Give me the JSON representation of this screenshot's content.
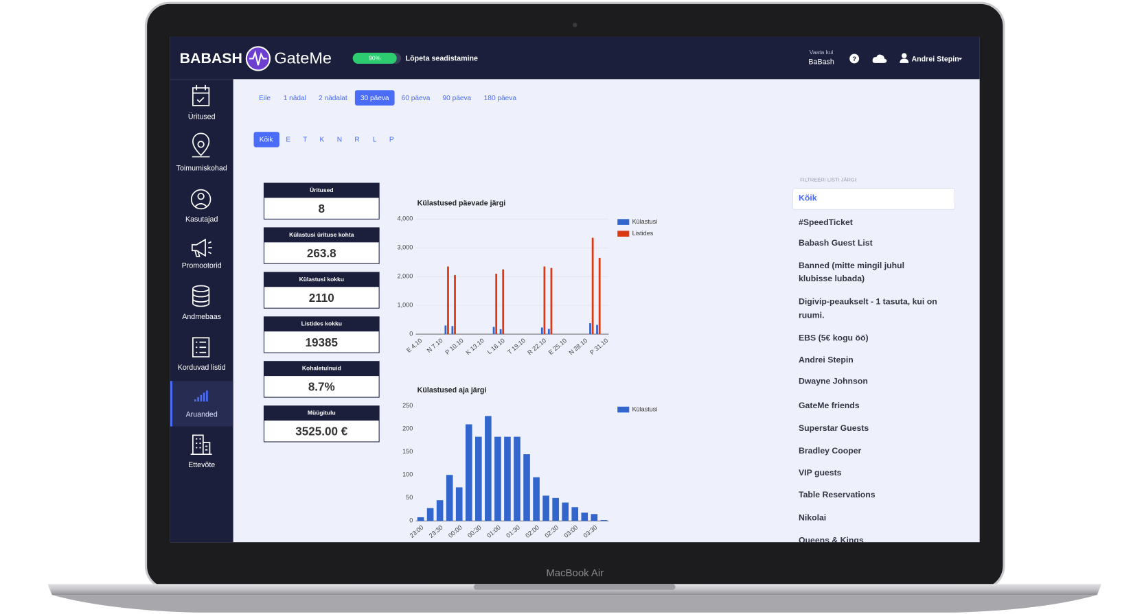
{
  "header": {
    "brand": "BABASH",
    "product": "GateMe",
    "progress": "90%",
    "setup": "Lõpeta seadistamine",
    "view_as_label": "Vaata kui",
    "view_as": "BaBash",
    "help": "?",
    "user": "Andrei Stepin"
  },
  "sidebar": [
    "Üritused",
    "Toimumiskohad",
    "Kasutajad",
    "Promootorid",
    "Andmebaas",
    "Korduvad listid",
    "Aruanded",
    "Ettevõte"
  ],
  "periods": [
    "Eile",
    "1 nädal",
    "2 nädalat",
    "30 päeva",
    "60 päeva",
    "90 päeva",
    "180 päeva"
  ],
  "days": [
    "Kõik",
    "E",
    "T",
    "K",
    "N",
    "R",
    "L",
    "P"
  ],
  "stats": [
    {
      "label": "Üritused",
      "value": "8"
    },
    {
      "label": "Külastusi ürituse kohta",
      "value": "263.8"
    },
    {
      "label": "Külastusi kokku",
      "value": "2110"
    },
    {
      "label": "Listides kokku",
      "value": "19385"
    },
    {
      "label": "Kohaletulnuid",
      "value": "8.7%"
    },
    {
      "label": "Müügitulu",
      "value": "3525.00 €"
    }
  ],
  "filter_list": {
    "heading": "FILTREERI LISTI JÄRGI:",
    "selected": "Kõik",
    "items": [
      "#SpeedTicket",
      "Babash Guest List",
      [
        "Banned (mitte mingil juhul",
        "klubisse lubada)"
      ],
      [
        "Digivip-peaukselt - 1 tasuta, kui on",
        "ruumi."
      ],
      "EBS (5€ kogu öö)",
      "Andrei Stepin",
      "Dwayne Johnson",
      "GateMe friends",
      "Superstar Guests",
      "Bradley Cooper",
      "VIP guests",
      "Table Reservations",
      "Nikolai",
      "Queens & Kings"
    ]
  },
  "device_label": "MacBook Air",
  "chart_data": [
    {
      "type": "bar",
      "title": "Külastused päevade järgi",
      "categories": [
        "E 4.10",
        null,
        null,
        "N 7.10",
        null,
        null,
        "P 10.10",
        null,
        null,
        "K 13.10",
        null,
        null,
        "L 16.10",
        null,
        null,
        "T 19.10",
        null,
        null,
        "R 22.10",
        null,
        null,
        "E 25.10",
        null,
        null,
        "N 28.10",
        null,
        null,
        "P 31.10"
      ],
      "series": [
        {
          "name": "Külastusi",
          "color": "#3366cc",
          "values": [
            0,
            0,
            0,
            0,
            300,
            280,
            0,
            0,
            0,
            0,
            0,
            250,
            170,
            0,
            0,
            0,
            0,
            0,
            230,
            180,
            0,
            0,
            0,
            0,
            0,
            380,
            320,
            0
          ]
        },
        {
          "name": "Listides",
          "color": "#dc3912",
          "values": [
            0,
            0,
            0,
            0,
            2350,
            2050,
            0,
            0,
            0,
            0,
            0,
            2100,
            2250,
            0,
            0,
            0,
            0,
            0,
            2350,
            2300,
            0,
            0,
            0,
            0,
            0,
            3350,
            2650,
            0
          ]
        }
      ],
      "ylim": [
        0,
        4000
      ],
      "yticks": [
        0,
        {
          "value": 1000,
          "label": "1,000"
        },
        {
          "value": 2000,
          "label": "2,000"
        },
        {
          "value": 3000,
          "label": "3,000"
        },
        {
          "value": 4000,
          "label": "4,000"
        }
      ],
      "grid": true
    },
    {
      "type": "bar",
      "title": "Külastused aja järgi",
      "categories": [
        "23:00",
        null,
        "23:30",
        null,
        "00:00",
        null,
        "00:30",
        null,
        "01:00",
        null,
        "01:30",
        null,
        "02:00",
        null,
        "02:30",
        null,
        "03:00",
        null,
        "03:30",
        null
      ],
      "series": [
        {
          "name": "Külastusi",
          "color": "#3366cc",
          "values": [
            8,
            28,
            45,
            100,
            73,
            210,
            183,
            228,
            183,
            183,
            183,
            145,
            95,
            55,
            50,
            40,
            30,
            18,
            15,
            2
          ]
        }
      ],
      "ylim": [
        0,
        250
      ],
      "yticks": [
        0,
        50,
        100,
        150,
        200,
        250
      ],
      "grid": false
    }
  ]
}
